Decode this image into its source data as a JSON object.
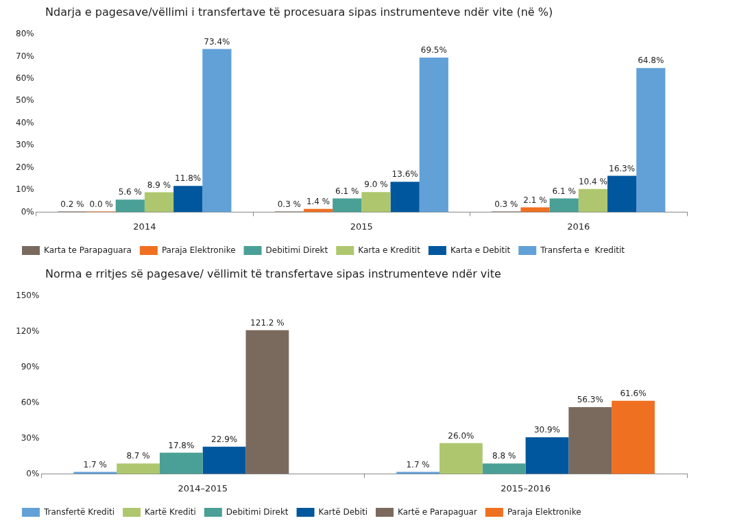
{
  "chart_data": [
    {
      "type": "bar",
      "title": "Ndarja e pagesave/vëllimi i transfertave të procesuara sipas instrumenteve ndër vite (në %)",
      "categories": [
        "2014",
        "2015",
        "2016"
      ],
      "series": [
        {
          "name": "Karta te Parapaguara",
          "color": "#7a6a5e",
          "values": [
            0.2,
            0.3,
            0.3
          ],
          "value_labels": [
            "0.2 %",
            "0.3 %",
            "0.3 %"
          ]
        },
        {
          "name": "Paraja Elektronike",
          "color": "#f07022",
          "values": [
            0.0,
            1.4,
            2.1
          ],
          "value_labels": [
            "0.0 %",
            "1.4 %",
            "2.1 %"
          ]
        },
        {
          "name": "Debitimi Direkt",
          "color": "#4aa096",
          "values": [
            5.6,
            6.1,
            6.1
          ],
          "value_labels": [
            "5.6 %",
            "6.1 %",
            "6.1 %"
          ]
        },
        {
          "name": "Karta e Kreditit",
          "color": "#aec76e",
          "values": [
            8.9,
            9.0,
            10.4
          ],
          "value_labels": [
            "8.9 %",
            "9.0 %",
            "10.4 %"
          ]
        },
        {
          "name": "Karta e Debitit",
          "color": "#00579e",
          "values": [
            11.8,
            13.6,
            16.3
          ],
          "value_labels": [
            "11.8%",
            "13.6%",
            "16.3%"
          ]
        },
        {
          "name": "Transferta e  Kreditit",
          "color": "#62a1d8",
          "values": [
            73.4,
            69.5,
            64.8
          ],
          "value_labels": [
            "73.4%",
            "69.5%",
            "64.8%"
          ]
        }
      ],
      "ylim": [
        0,
        80
      ],
      "yticks": [
        {
          "value": 0,
          "label": "0%"
        },
        {
          "value": 10,
          "label": "10%"
        },
        {
          "value": 20,
          "label": "20%"
        },
        {
          "value": 30,
          "label": "30%"
        },
        {
          "value": 40,
          "label": "40%"
        },
        {
          "value": 50,
          "label": "50%"
        },
        {
          "value": 60,
          "label": "60%"
        },
        {
          "value": 70,
          "label": "70%"
        },
        {
          "value": 80,
          "label": "80%"
        }
      ],
      "grid": false,
      "legend": "bottom"
    },
    {
      "type": "bar",
      "title": "Norma e rritjes së pagesave/ vëllimit të transfertave sipas instrumenteve ndër vite",
      "categories": [
        "2014–2015",
        "2015–2016"
      ],
      "series": [
        {
          "name": "Transfertë Krediti",
          "color": "#62a1d8",
          "values": [
            1.7,
            1.7
          ],
          "value_labels": [
            "1.7 %",
            "1.7 %"
          ]
        },
        {
          "name": "Kartë Krediti",
          "color": "#aec76e",
          "values": [
            8.7,
            26.0
          ],
          "value_labels": [
            "8.7 %",
            "26.0%"
          ]
        },
        {
          "name": "Debitimi Direkt",
          "color": "#4aa096",
          "values": [
            17.8,
            8.8
          ],
          "value_labels": [
            "17.8%",
            "8.8 %"
          ]
        },
        {
          "name": "Kartë Debiti",
          "color": "#00579e",
          "values": [
            22.9,
            30.9
          ],
          "value_labels": [
            "22.9%",
            "30.9%"
          ]
        },
        {
          "name": "Kartë e Parapaguar",
          "color": "#7a6a5e",
          "values": [
            121.2,
            56.3
          ],
          "value_labels": [
            "121.2 %",
            "56.3%"
          ]
        },
        {
          "name": "Paraja Elektronike",
          "color": "#f07022",
          "values": [
            null,
            61.6
          ],
          "value_labels": [
            null,
            "61.6%"
          ]
        }
      ],
      "ylim": [
        0,
        150
      ],
      "yticks": [
        {
          "value": 0,
          "label": "0%"
        },
        {
          "value": 30,
          "label": "30%"
        },
        {
          "value": 60,
          "label": "60%"
        },
        {
          "value": 90,
          "label": "90%"
        },
        {
          "value": 120,
          "label": "120%"
        },
        {
          "value": 150,
          "label": "150%"
        }
      ],
      "grid": false,
      "legend": "bottom"
    }
  ]
}
